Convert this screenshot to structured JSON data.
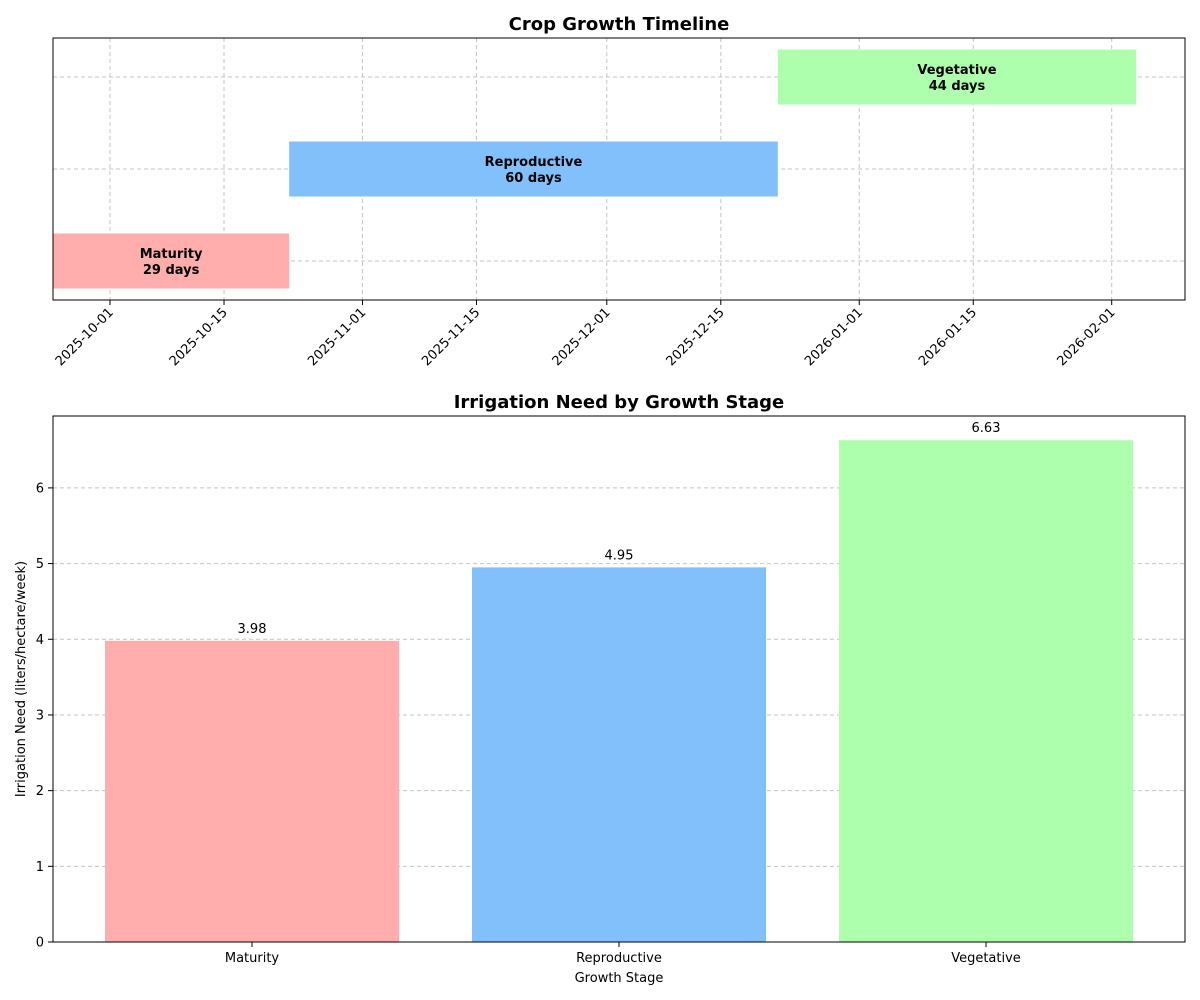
{
  "chart_data": [
    {
      "type": "bar",
      "orientation": "horizontal-timeline",
      "title": "Crop Growth Timeline",
      "xlabel": "",
      "ylabel": "",
      "x_ticks": [
        "2025-10-01",
        "2025-10-15",
        "2025-11-01",
        "2025-11-15",
        "2025-12-01",
        "2025-12-15",
        "2026-01-01",
        "2026-01-15",
        "2026-02-01"
      ],
      "xlim": [
        "2025-09-24",
        "2026-02-10"
      ],
      "grid": true,
      "series": [
        {
          "name": "Maturity",
          "start": "2025-09-24",
          "end": "2025-10-23",
          "duration_label": "29 days",
          "color": "#ffadad"
        },
        {
          "name": "Reproductive",
          "start": "2025-10-23",
          "end": "2025-12-22",
          "duration_label": "60 days",
          "color": "#82c0fc"
        },
        {
          "name": "Vegetative",
          "start": "2025-12-22",
          "end": "2026-02-04",
          "duration_label": "44 days",
          "color": "#aeffad"
        }
      ]
    },
    {
      "type": "bar",
      "title": "Irrigation Need by Growth Stage",
      "xlabel": "Growth Stage",
      "ylabel": "Irrigation Need (liters/hectare/week)",
      "categories": [
        "Maturity",
        "Reproductive",
        "Vegetative"
      ],
      "values": [
        3.98,
        4.95,
        6.63
      ],
      "value_labels": [
        "3.98",
        "4.95",
        "6.63"
      ],
      "colors": [
        "#ffadad",
        "#82c0fc",
        "#aeffad"
      ],
      "ylim": [
        0,
        6.95
      ],
      "y_ticks": [
        "0",
        "1",
        "2",
        "3",
        "4",
        "5",
        "6"
      ],
      "grid": true
    }
  ]
}
